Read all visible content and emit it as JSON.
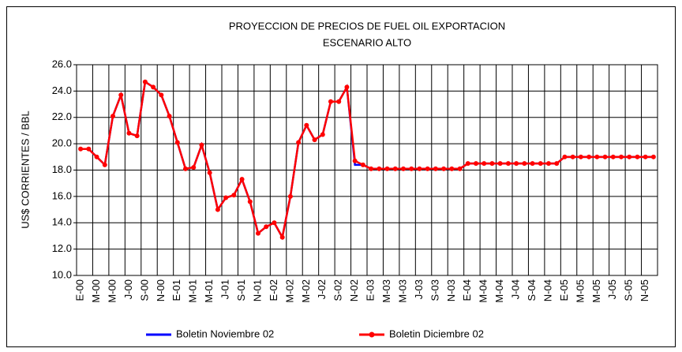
{
  "chart_data": {
    "type": "line",
    "title": "PROYECCION DE PRECIOS DE FUEL OIL EXPORTACION",
    "subtitle": "ESCENARIO ALTO",
    "y_label": "US$ CORRIENTES / BBL",
    "categories": [
      "E-00",
      null,
      "M-00",
      null,
      "M-00",
      null,
      "J-00",
      null,
      "S-00",
      null,
      "N-00",
      null,
      "E-01",
      null,
      "M-01",
      null,
      "M-01",
      null,
      "J-01",
      null,
      "S-01",
      null,
      "N-01",
      null,
      "E-02",
      null,
      "M-02",
      null,
      "M-02",
      null,
      "J-02",
      null,
      "S-02",
      null,
      "N-02",
      null,
      "E-03",
      null,
      "M-03",
      null,
      "M-03",
      null,
      "J-03",
      null,
      "S-03",
      null,
      "N-03",
      null,
      "E-04",
      null,
      "M-04",
      null,
      "M-04",
      null,
      "J-04",
      null,
      "S-04",
      null,
      "N-04",
      null,
      "E-05",
      null,
      "M-05",
      null,
      "M-05",
      null,
      "J-05",
      null,
      "S-05",
      null,
      "N-05",
      null
    ],
    "series": [
      {
        "name": "Boletin Noviembre 02",
        "color": "#0000ff",
        "marker": false,
        "values": [
          19.6,
          19.6,
          19.0,
          18.4,
          22.1,
          23.7,
          20.8,
          20.6,
          24.7,
          24.3,
          23.7,
          22.1,
          20.1,
          18.1,
          18.2,
          19.9,
          17.8,
          15.0,
          15.9,
          16.1,
          17.3,
          15.6,
          13.2,
          13.7,
          14.0,
          12.9,
          16.0,
          20.1,
          21.4,
          20.3,
          20.7,
          23.2,
          23.2,
          24.3,
          18.4,
          18.4,
          18.1,
          18.1,
          18.1,
          18.1,
          18.1,
          18.1,
          18.1,
          18.1,
          18.1,
          18.1,
          18.1,
          18.1,
          18.5,
          18.5,
          18.5,
          18.5,
          18.5,
          18.5,
          18.5,
          18.5,
          18.5,
          18.5,
          18.5,
          18.5,
          19.0,
          19.0,
          19.0,
          19.0,
          19.0,
          19.0,
          19.0,
          19.0,
          19.0,
          19.0,
          19.0,
          19.0
        ]
      },
      {
        "name": "Boletin Diciembre 02",
        "color": "#ff0000",
        "marker": true,
        "values": [
          19.6,
          19.6,
          19.0,
          18.4,
          22.1,
          23.7,
          20.8,
          20.6,
          24.7,
          24.3,
          23.7,
          22.1,
          20.1,
          18.1,
          18.2,
          19.9,
          17.8,
          15.0,
          15.9,
          16.1,
          17.3,
          15.6,
          13.2,
          13.7,
          14.0,
          12.9,
          16.0,
          20.1,
          21.4,
          20.3,
          20.7,
          23.2,
          23.2,
          24.3,
          18.7,
          18.4,
          18.1,
          18.1,
          18.1,
          18.1,
          18.1,
          18.1,
          18.1,
          18.1,
          18.1,
          18.1,
          18.1,
          18.1,
          18.5,
          18.5,
          18.5,
          18.5,
          18.5,
          18.5,
          18.5,
          18.5,
          18.5,
          18.5,
          18.5,
          18.5,
          19.0,
          19.0,
          19.0,
          19.0,
          19.0,
          19.0,
          19.0,
          19.0,
          19.0,
          19.0,
          19.0,
          19.0
        ]
      }
    ],
    "ylim": [
      10,
      26
    ],
    "yticks": [
      {
        "value": 10,
        "label": "10.0"
      },
      {
        "value": 12,
        "label": "12.0"
      },
      {
        "value": 14,
        "label": "14.0"
      },
      {
        "value": 16,
        "label": "16.0"
      },
      {
        "value": 18,
        "label": "18.0"
      },
      {
        "value": 20,
        "label": "20.0"
      },
      {
        "value": 22,
        "label": "22.0"
      },
      {
        "value": 24,
        "label": "24.0"
      },
      {
        "value": 26,
        "label": "26.0"
      }
    ],
    "grid": true,
    "legend": "bottom"
  }
}
